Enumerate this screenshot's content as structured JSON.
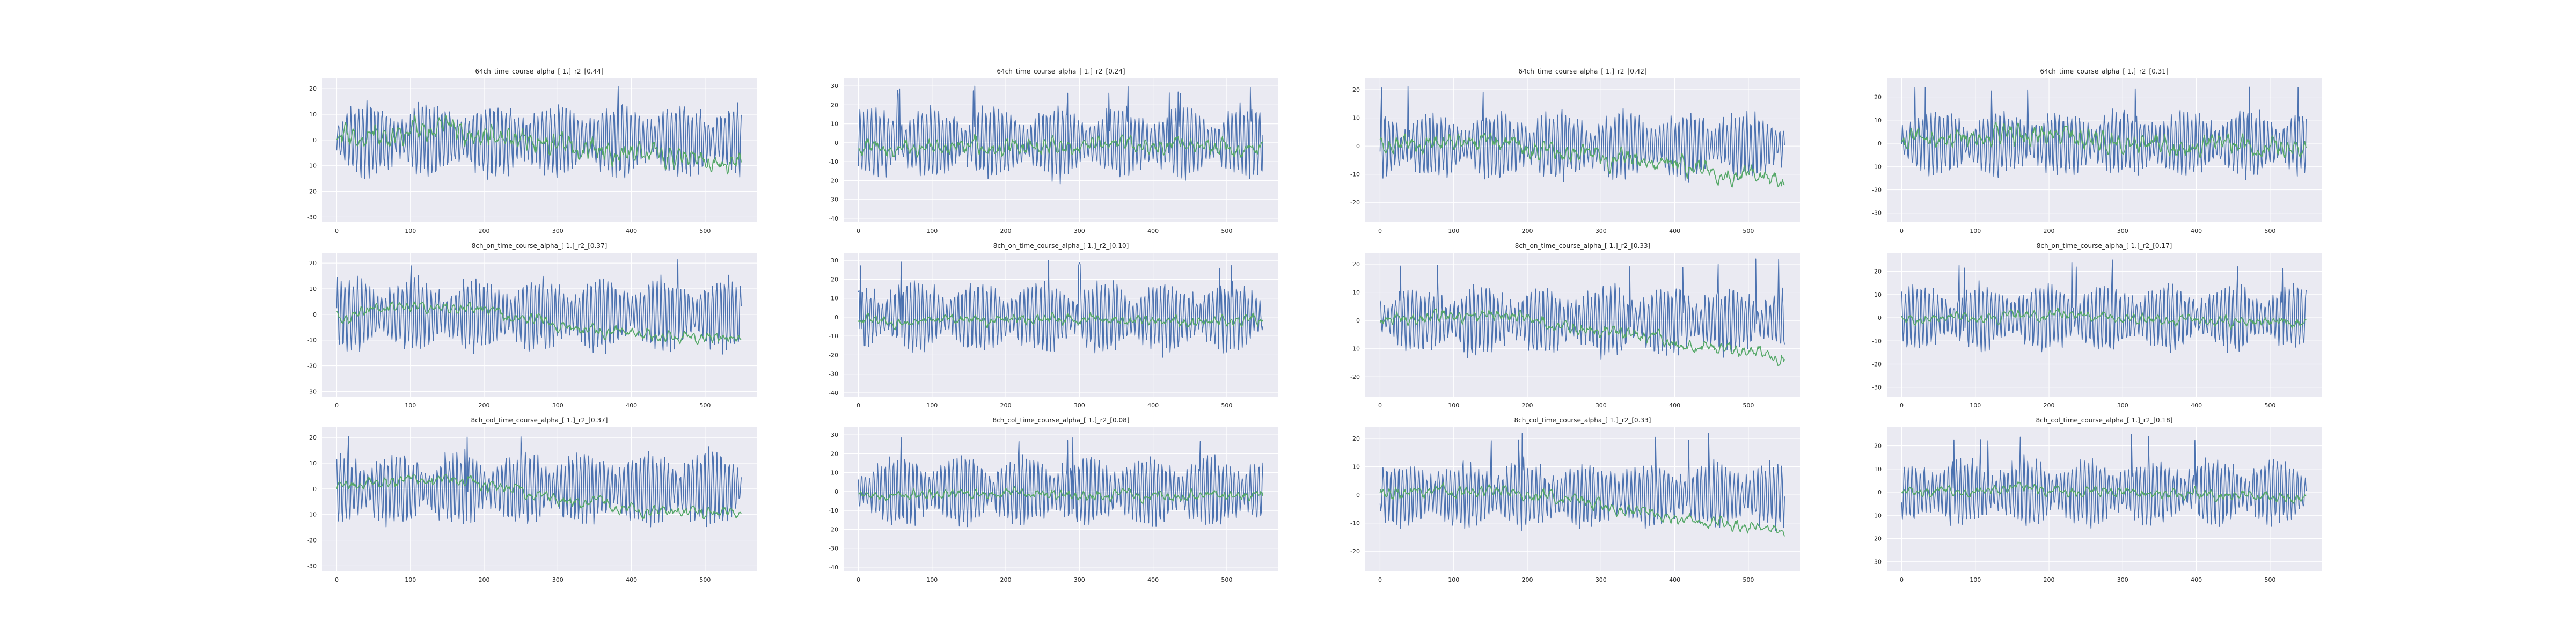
{
  "figure": {
    "background": "#ffffff",
    "axes_facecolor": "#eaeaf2",
    "series_colors": [
      "#4c72b0",
      "#55a868"
    ]
  },
  "chart_data": [
    {
      "type": "line",
      "title": "64ch_time_course_alpha_[ 1.]_r2_[0.44]",
      "x": [
        0,
        549
      ],
      "xlim": [
        -20,
        570
      ],
      "ylim": [
        -32,
        24
      ],
      "xticks": [
        0,
        100,
        200,
        300,
        400,
        500
      ],
      "yticks": [
        -30,
        -20,
        -10,
        0,
        10,
        20
      ],
      "grid": true,
      "series": [
        {
          "color": "#4c72b0",
          "trend": [
            [
              0,
              0
            ],
            [
              549,
              0
            ]
          ],
          "amplitude": 12,
          "peak": 22
        },
        {
          "color": "#55a868",
          "trend": [
            [
              0,
              0
            ],
            [
              100,
              5
            ],
            [
              200,
              2
            ],
            [
              300,
              -4
            ],
            [
              400,
              -6
            ],
            [
              549,
              -8
            ]
          ],
          "amplitude": 4
        }
      ]
    },
    {
      "type": "line",
      "title": "64ch_time_course_alpha_[ 1.]_r2_[0.24]",
      "x": [
        0,
        549
      ],
      "xlim": [
        -20,
        570
      ],
      "ylim": [
        -42,
        34
      ],
      "xticks": [
        0,
        100,
        200,
        300,
        400,
        500
      ],
      "yticks": [
        -40,
        -30,
        -20,
        -10,
        0,
        10,
        20,
        30
      ],
      "grid": true,
      "series": [
        {
          "color": "#4c72b0",
          "trend": [
            [
              0,
              0
            ],
            [
              549,
              0
            ]
          ],
          "amplitude": 16,
          "peak": 30
        },
        {
          "color": "#55a868",
          "trend": [
            [
              0,
              -2
            ],
            [
              200,
              -1
            ],
            [
              400,
              -2
            ],
            [
              549,
              -3
            ]
          ],
          "amplitude": 4
        }
      ]
    },
    {
      "type": "line",
      "title": "64ch_time_course_alpha_[ 1.]_r2_[0.42]",
      "x": [
        0,
        549
      ],
      "xlim": [
        -20,
        570
      ],
      "ylim": [
        -27,
        24
      ],
      "xticks": [
        0,
        100,
        200,
        300,
        400,
        500
      ],
      "yticks": [
        -20,
        -10,
        0,
        10,
        20
      ],
      "grid": true,
      "series": [
        {
          "color": "#4c72b0",
          "trend": [
            [
              0,
              0
            ],
            [
              549,
              0
            ]
          ],
          "amplitude": 10,
          "peak": 22
        },
        {
          "color": "#55a868",
          "trend": [
            [
              0,
              0
            ],
            [
              150,
              2
            ],
            [
              250,
              -2
            ],
            [
              400,
              -7
            ],
            [
              549,
              -12
            ]
          ],
          "amplitude": 3
        }
      ]
    },
    {
      "type": "line",
      "title": "64ch_time_course_alpha_[ 1.]_r2_[0.31]",
      "x": [
        0,
        549
      ],
      "xlim": [
        -20,
        570
      ],
      "ylim": [
        -34,
        28
      ],
      "xticks": [
        0,
        100,
        200,
        300,
        400,
        500
      ],
      "yticks": [
        -30,
        -20,
        -10,
        0,
        10,
        20
      ],
      "grid": true,
      "series": [
        {
          "color": "#4c72b0",
          "trend": [
            [
              0,
              0
            ],
            [
              549,
              0
            ]
          ],
          "amplitude": 12,
          "peak": 25
        },
        {
          "color": "#55a868",
          "trend": [
            [
              0,
              0
            ],
            [
              100,
              3
            ],
            [
              300,
              0
            ],
            [
              549,
              -2
            ]
          ],
          "amplitude": 4
        }
      ]
    },
    {
      "type": "line",
      "title": "8ch_on_time_course_alpha_[ 1.]_r2_[0.37]",
      "x": [
        0,
        549
      ],
      "xlim": [
        -20,
        570
      ],
      "ylim": [
        -32,
        24
      ],
      "xticks": [
        0,
        100,
        200,
        300,
        400,
        500
      ],
      "yticks": [
        -30,
        -20,
        -10,
        0,
        10,
        20
      ],
      "grid": true,
      "series": [
        {
          "color": "#4c72b0",
          "trend": [
            [
              0,
              0
            ],
            [
              549,
              0
            ]
          ],
          "amplitude": 12,
          "peak": 22
        },
        {
          "color": "#55a868",
          "trend": [
            [
              0,
              0
            ],
            [
              100,
              4
            ],
            [
              200,
              2
            ],
            [
              300,
              -4
            ],
            [
              400,
              -8
            ],
            [
              549,
              -10
            ]
          ],
          "amplitude": 2
        }
      ]
    },
    {
      "type": "line",
      "title": "8ch_on_time_course_alpha_[ 1.]_r2_[0.10]",
      "x": [
        0,
        549
      ],
      "xlim": [
        -20,
        570
      ],
      "ylim": [
        -42,
        34
      ],
      "xticks": [
        0,
        100,
        200,
        300,
        400,
        500
      ],
      "yticks": [
        -40,
        -30,
        -20,
        -10,
        0,
        10,
        20,
        30
      ],
      "grid": true,
      "series": [
        {
          "color": "#4c72b0",
          "trend": [
            [
              0,
              0
            ],
            [
              549,
              0
            ]
          ],
          "amplitude": 16,
          "peak": 30
        },
        {
          "color": "#55a868",
          "trend": [
            [
              0,
              -2
            ],
            [
              200,
              -1
            ],
            [
              400,
              -2
            ],
            [
              549,
              -2
            ]
          ],
          "amplitude": 2.5
        }
      ]
    },
    {
      "type": "line",
      "title": "8ch_on_time_course_alpha_[ 1.]_r2_[0.33]",
      "x": [
        0,
        549
      ],
      "xlim": [
        -20,
        570
      ],
      "ylim": [
        -27,
        24
      ],
      "xticks": [
        0,
        100,
        200,
        300,
        400,
        500
      ],
      "yticks": [
        -20,
        -10,
        0,
        10,
        20
      ],
      "grid": true,
      "series": [
        {
          "color": "#4c72b0",
          "trend": [
            [
              0,
              0
            ],
            [
              549,
              0
            ]
          ],
          "amplitude": 10,
          "peak": 22
        },
        {
          "color": "#55a868",
          "trend": [
            [
              0,
              0
            ],
            [
              150,
              2
            ],
            [
              250,
              -2
            ],
            [
              400,
              -8
            ],
            [
              549,
              -13
            ]
          ],
          "amplitude": 2
        }
      ]
    },
    {
      "type": "line",
      "title": "8ch_on_time_course_alpha_[ 1.]_r2_[0.17]",
      "x": [
        0,
        549
      ],
      "xlim": [
        -20,
        570
      ],
      "ylim": [
        -34,
        28
      ],
      "xticks": [
        0,
        100,
        200,
        300,
        400,
        500
      ],
      "yticks": [
        -30,
        -20,
        -10,
        0,
        10,
        20
      ],
      "grid": true,
      "series": [
        {
          "color": "#4c72b0",
          "trend": [
            [
              0,
              0
            ],
            [
              549,
              0
            ]
          ],
          "amplitude": 12,
          "peak": 25
        },
        {
          "color": "#55a868",
          "trend": [
            [
              0,
              0
            ],
            [
              200,
              1
            ],
            [
              400,
              -1
            ],
            [
              549,
              -2
            ]
          ],
          "amplitude": 2
        }
      ]
    },
    {
      "type": "line",
      "title": "8ch_col_time_course_alpha_[ 1.]_r2_[0.37]",
      "x": [
        0,
        549
      ],
      "xlim": [
        -20,
        570
      ],
      "ylim": [
        -32,
        24
      ],
      "xticks": [
        0,
        100,
        200,
        300,
        400,
        500
      ],
      "yticks": [
        -30,
        -20,
        -10,
        0,
        10,
        20
      ],
      "grid": true,
      "series": [
        {
          "color": "#4c72b0",
          "trend": [
            [
              0,
              0
            ],
            [
              549,
              0
            ]
          ],
          "amplitude": 12,
          "peak": 22
        },
        {
          "color": "#55a868",
          "trend": [
            [
              0,
              0
            ],
            [
              100,
              4
            ],
            [
              200,
              2
            ],
            [
              300,
              -4
            ],
            [
              400,
              -8
            ],
            [
              549,
              -10
            ]
          ],
          "amplitude": 2
        }
      ]
    },
    {
      "type": "line",
      "title": "8ch_col_time_course_alpha_[ 1.]_r2_[0.08]",
      "x": [
        0,
        549
      ],
      "xlim": [
        -20,
        570
      ],
      "ylim": [
        -42,
        34
      ],
      "xticks": [
        0,
        100,
        200,
        300,
        400,
        500
      ],
      "yticks": [
        -40,
        -30,
        -20,
        -10,
        0,
        10,
        20,
        30
      ],
      "grid": true,
      "series": [
        {
          "color": "#4c72b0",
          "trend": [
            [
              0,
              0
            ],
            [
              549,
              0
            ]
          ],
          "amplitude": 16,
          "peak": 30
        },
        {
          "color": "#55a868",
          "trend": [
            [
              0,
              -2
            ],
            [
              200,
              -1
            ],
            [
              400,
              -2
            ],
            [
              549,
              -2
            ]
          ],
          "amplitude": 2.5
        }
      ]
    },
    {
      "type": "line",
      "title": "8ch_col_time_course_alpha_[ 1.]_r2_[0.33]",
      "x": [
        0,
        549
      ],
      "xlim": [
        -20,
        570
      ],
      "ylim": [
        -27,
        24
      ],
      "xticks": [
        0,
        100,
        200,
        300,
        400,
        500
      ],
      "yticks": [
        -20,
        -10,
        0,
        10,
        20
      ],
      "grid": true,
      "series": [
        {
          "color": "#4c72b0",
          "trend": [
            [
              0,
              0
            ],
            [
              549,
              0
            ]
          ],
          "amplitude": 10,
          "peak": 22
        },
        {
          "color": "#55a868",
          "trend": [
            [
              0,
              0
            ],
            [
              150,
              2
            ],
            [
              250,
              -2
            ],
            [
              400,
              -8
            ],
            [
              549,
              -13
            ]
          ],
          "amplitude": 2
        }
      ]
    },
    {
      "type": "line",
      "title": "8ch_col_time_course_alpha_[ 1.]_r2_[0.18]",
      "x": [
        0,
        549
      ],
      "xlim": [
        -20,
        570
      ],
      "ylim": [
        -34,
        28
      ],
      "xticks": [
        0,
        100,
        200,
        300,
        400,
        500
      ],
      "yticks": [
        -30,
        -20,
        -10,
        0,
        10,
        20
      ],
      "grid": true,
      "series": [
        {
          "color": "#4c72b0",
          "trend": [
            [
              0,
              0
            ],
            [
              549,
              0
            ]
          ],
          "amplitude": 12,
          "peak": 25
        },
        {
          "color": "#55a868",
          "trend": [
            [
              0,
              0
            ],
            [
              200,
              1
            ],
            [
              400,
              -1
            ],
            [
              549,
              -2
            ]
          ],
          "amplitude": 2
        }
      ]
    }
  ]
}
